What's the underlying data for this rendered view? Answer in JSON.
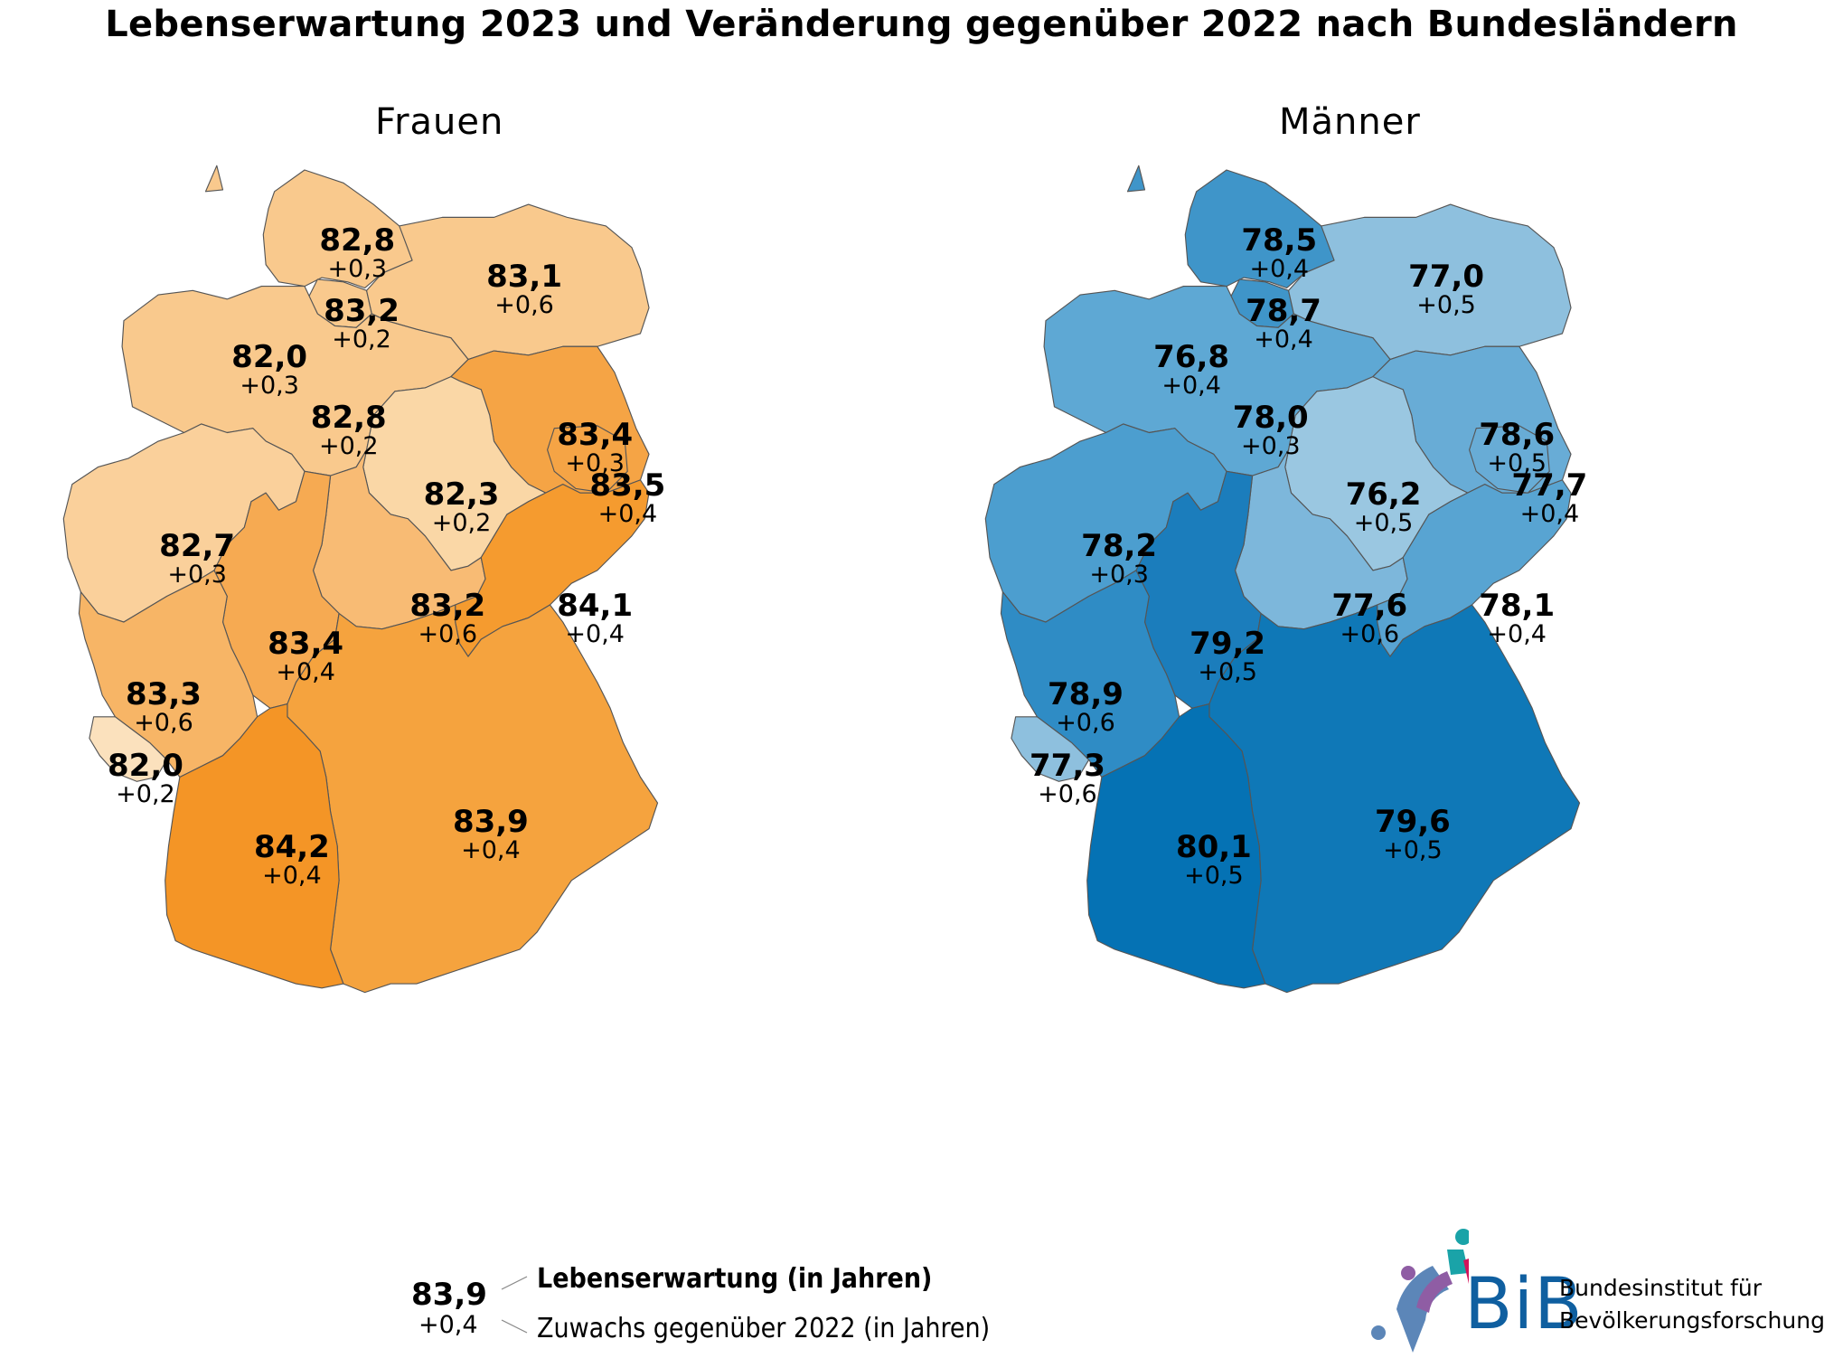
{
  "title": "Lebenserwartung 2023 und Veränderung gegenüber 2022 nach Bundesländern",
  "maps": {
    "women": {
      "title": "Frauen",
      "states": [
        {
          "name": "Schleswig-Holstein",
          "value": "82,8",
          "change": "+0,3",
          "color": "#f9c98d"
        },
        {
          "name": "Hamburg",
          "value": "83,2",
          "change": "+0,2",
          "color": "#f9c98d"
        },
        {
          "name": "Mecklenburg-Vorpommern",
          "value": "83,1",
          "change": "+0,6",
          "color": "#f9c98d"
        },
        {
          "name": "Bremen",
          "value": "82,0",
          "change": "+0,3",
          "color": "#f9c98d"
        },
        {
          "name": "Niedersachsen",
          "value": "82,8",
          "change": "+0,2",
          "color": "#f9c98d"
        },
        {
          "name": "Brandenburg",
          "value": "83,4",
          "change": "+0,3",
          "color": "#f5a445"
        },
        {
          "name": "Berlin",
          "value": "83,5",
          "change": "+0,4",
          "color": "#f5a445"
        },
        {
          "name": "Sachsen-Anhalt",
          "value": "82,3",
          "change": "+0,2",
          "color": "#fad7a6"
        },
        {
          "name": "Nordrhein-Westfalen",
          "value": "82,7",
          "change": "+0,3",
          "color": "#fad09b"
        },
        {
          "name": "Thüringen",
          "value": "83,2",
          "change": "+0,6",
          "color": "#f8bb74"
        },
        {
          "name": "Sachsen",
          "value": "84,1",
          "change": "+0,4",
          "color": "#f59b2f"
        },
        {
          "name": "Hessen",
          "value": "83,4",
          "change": "+0,4",
          "color": "#f6aa52"
        },
        {
          "name": "Rheinland-Pfalz",
          "value": "83,3",
          "change": "+0,6",
          "color": "#f7b566"
        },
        {
          "name": "Saarland",
          "value": "82,0",
          "change": "+0,2",
          "color": "#fbe1bd"
        },
        {
          "name": "Bayern",
          "value": "83,9",
          "change": "+0,4",
          "color": "#f5a33e"
        },
        {
          "name": "Baden-Württemberg",
          "value": "84,2",
          "change": "+0,4",
          "color": "#f49526"
        }
      ]
    },
    "men": {
      "title": "Männer",
      "states": [
        {
          "name": "Schleswig-Holstein",
          "value": "78,5",
          "change": "+0,4",
          "color": "#3f95c9"
        },
        {
          "name": "Hamburg",
          "value": "78,7",
          "change": "+0,4",
          "color": "#3f95c9"
        },
        {
          "name": "Mecklenburg-Vorpommern",
          "value": "77,0",
          "change": "+0,5",
          "color": "#8ec0de"
        },
        {
          "name": "Bremen",
          "value": "76,8",
          "change": "+0,4",
          "color": "#5ea8d4"
        },
        {
          "name": "Niedersachsen",
          "value": "78,0",
          "change": "+0,3",
          "color": "#5ea8d4"
        },
        {
          "name": "Brandenburg",
          "value": "78,6",
          "change": "+0,5",
          "color": "#68acd6"
        },
        {
          "name": "Berlin",
          "value": "77,7",
          "change": "+0,4",
          "color": "#68acd6"
        },
        {
          "name": "Sachsen-Anhalt",
          "value": "76,2",
          "change": "+0,5",
          "color": "#9ac7e1"
        },
        {
          "name": "Nordrhein-Westfalen",
          "value": "78,2",
          "change": "+0,3",
          "color": "#4c9ecf"
        },
        {
          "name": "Thüringen",
          "value": "77,6",
          "change": "+0,6",
          "color": "#7db7db"
        },
        {
          "name": "Sachsen",
          "value": "78,1",
          "change": "+0,4",
          "color": "#58a4d2"
        },
        {
          "name": "Hessen",
          "value": "79,2",
          "change": "+0,5",
          "color": "#1b7dbc"
        },
        {
          "name": "Rheinland-Pfalz",
          "value": "78,9",
          "change": "+0,6",
          "color": "#2f8cc5"
        },
        {
          "name": "Saarland",
          "value": "77,3",
          "change": "+0,6",
          "color": "#8ec0de"
        },
        {
          "name": "Bayern",
          "value": "79,6",
          "change": "+0,5",
          "color": "#0f78b7"
        },
        {
          "name": "Baden-Württemberg",
          "value": "80,1",
          "change": "+0,5",
          "color": "#0572b4"
        }
      ]
    }
  },
  "legend": {
    "example_value": "83,9",
    "example_change": "+0,4",
    "value_label": "Lebenserwartung (in Jahren)",
    "change_label": "Zuwachs gegenüber 2022 (in Jahren)"
  },
  "logo": {
    "wordmark": "BiB",
    "line1": "Bundesinstitut für",
    "line2": "Bevölkerungsforschung"
  }
}
